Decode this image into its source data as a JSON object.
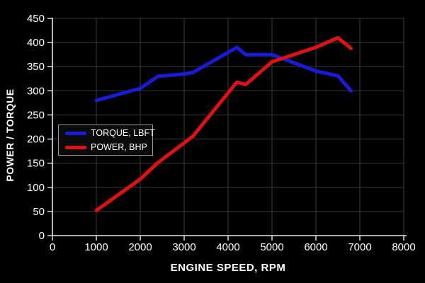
{
  "figure": {
    "background": "#000000",
    "grid_color": "#3c3c3c",
    "axis_color": "#e6e6e6",
    "text_color": "#ffffff",
    "legend_border_color": "#9a9a9a",
    "legend_background": "#0b0b0b"
  },
  "chart_data": {
    "type": "line",
    "title": "",
    "xlabel": "ENGINE SPEED, RPM",
    "ylabel": "POWER / TORQUE",
    "xlim": [
      0,
      8000
    ],
    "ylim": [
      0,
      450
    ],
    "x_ticks": [
      0,
      1000,
      2000,
      3000,
      4000,
      5000,
      6000,
      7000,
      8000
    ],
    "y_ticks": [
      0,
      50,
      100,
      150,
      200,
      250,
      300,
      350,
      400,
      450
    ],
    "grid": true,
    "legend_position": "middle-left",
    "series": [
      {
        "name": "TORQUE, LBFT",
        "color": "#1a1ad9",
        "points": [
          [
            1000,
            280
          ],
          [
            2000,
            305
          ],
          [
            2400,
            330
          ],
          [
            3000,
            335
          ],
          [
            3200,
            338
          ],
          [
            4200,
            390
          ],
          [
            4400,
            375
          ],
          [
            5000,
            375
          ],
          [
            6000,
            341
          ],
          [
            6500,
            331
          ],
          [
            6800,
            300
          ]
        ]
      },
      {
        "name": "POWER, BHP",
        "color": "#e01111",
        "points": [
          [
            1000,
            52
          ],
          [
            2000,
            117
          ],
          [
            2400,
            151
          ],
          [
            3000,
            192
          ],
          [
            3200,
            206
          ],
          [
            4200,
            318
          ],
          [
            4400,
            313
          ],
          [
            5000,
            360
          ],
          [
            6000,
            390
          ],
          [
            6500,
            410
          ],
          [
            6800,
            388
          ]
        ]
      }
    ]
  }
}
